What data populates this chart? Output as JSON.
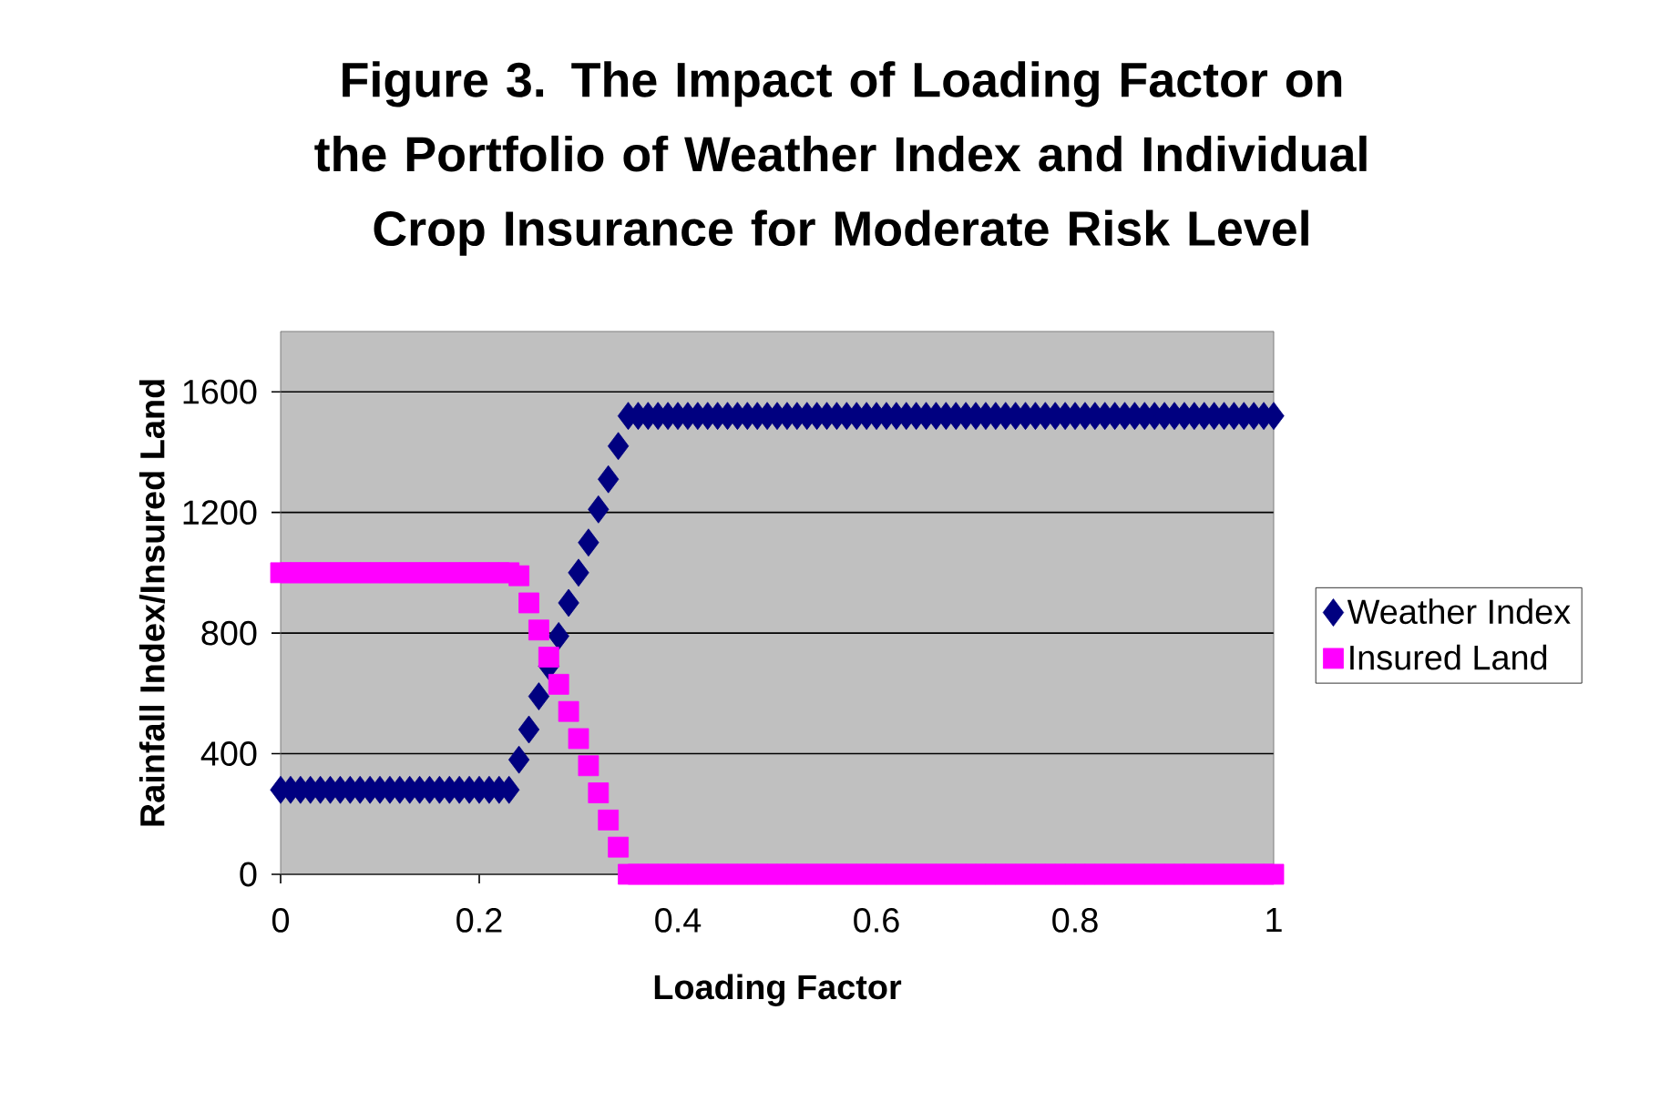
{
  "chart_data": {
    "type": "scatter",
    "title": "Figure 3. The Impact of Loading Factor on the Portfolio of Weather Index and Individual Crop Insurance for Moderate Risk Level",
    "xlabel": "Loading Factor",
    "ylabel": "Rainfall Index/Insured Land",
    "x": [
      0,
      0.01,
      0.02,
      0.03,
      0.04,
      0.05,
      0.06,
      0.07,
      0.08,
      0.09,
      0.1,
      0.11,
      0.12,
      0.13,
      0.14,
      0.15,
      0.16,
      0.17,
      0.18,
      0.19,
      0.2,
      0.21,
      0.22,
      0.23,
      0.24,
      0.25,
      0.26,
      0.27,
      0.28,
      0.29,
      0.3,
      0.31,
      0.32,
      0.33,
      0.34,
      0.35,
      0.36,
      0.37,
      0.38,
      0.39,
      0.4,
      0.41,
      0.42,
      0.43,
      0.44,
      0.45,
      0.46,
      0.47,
      0.48,
      0.49,
      0.5,
      0.51,
      0.52,
      0.53,
      0.54,
      0.55,
      0.56,
      0.57,
      0.58,
      0.59,
      0.6,
      0.61,
      0.62,
      0.63,
      0.64,
      0.65,
      0.66,
      0.67,
      0.68,
      0.69,
      0.7,
      0.71,
      0.72,
      0.73,
      0.74,
      0.75,
      0.76,
      0.77,
      0.78,
      0.79,
      0.8,
      0.81,
      0.82,
      0.83,
      0.84,
      0.85,
      0.86,
      0.87,
      0.88,
      0.89,
      0.9,
      0.91,
      0.92,
      0.93,
      0.94,
      0.95,
      0.96,
      0.97,
      0.98,
      0.99,
      1
    ],
    "series": [
      {
        "name": "Weather Index",
        "color": "#000080",
        "marker": "diamond",
        "values": [
          280,
          280,
          280,
          280,
          280,
          280,
          280,
          280,
          280,
          280,
          280,
          280,
          280,
          280,
          280,
          280,
          280,
          280,
          280,
          280,
          280,
          280,
          280,
          280,
          380,
          480,
          590,
          690,
          790,
          900,
          1000,
          1100,
          1210,
          1310,
          1420,
          1520,
          1520,
          1520,
          1520,
          1520,
          1520,
          1520,
          1520,
          1520,
          1520,
          1520,
          1520,
          1520,
          1520,
          1520,
          1520,
          1520,
          1520,
          1520,
          1520,
          1520,
          1520,
          1520,
          1520,
          1520,
          1520,
          1520,
          1520,
          1520,
          1520,
          1520,
          1520,
          1520,
          1520,
          1520,
          1520,
          1520,
          1520,
          1520,
          1520,
          1520,
          1520,
          1520,
          1520,
          1520,
          1520,
          1520,
          1520,
          1520,
          1520,
          1520,
          1520,
          1520,
          1520,
          1520,
          1520,
          1520,
          1520,
          1520,
          1520,
          1520,
          1520,
          1520,
          1520,
          1520,
          1520
        ]
      },
      {
        "name": "Insured Land",
        "color": "#ff00ff",
        "marker": "square",
        "values": [
          1000,
          1000,
          1000,
          1000,
          1000,
          1000,
          1000,
          1000,
          1000,
          1000,
          1000,
          1000,
          1000,
          1000,
          1000,
          1000,
          1000,
          1000,
          1000,
          1000,
          1000,
          1000,
          1000,
          1000,
          990,
          900,
          810,
          720,
          630,
          540,
          450,
          360,
          270,
          180,
          90,
          0,
          0,
          0,
          0,
          0,
          0,
          0,
          0,
          0,
          0,
          0,
          0,
          0,
          0,
          0,
          0,
          0,
          0,
          0,
          0,
          0,
          0,
          0,
          0,
          0,
          0,
          0,
          0,
          0,
          0,
          0,
          0,
          0,
          0,
          0,
          0,
          0,
          0,
          0,
          0,
          0,
          0,
          0,
          0,
          0,
          0,
          0,
          0,
          0,
          0,
          0,
          0,
          0,
          0,
          0,
          0,
          0,
          0,
          0,
          0,
          0,
          0,
          0,
          0,
          0,
          0
        ]
      }
    ],
    "xlim": [
      0,
      1
    ],
    "ylim": [
      0,
      1800
    ],
    "xticks": [
      0,
      0.2,
      0.4,
      0.6,
      0.8,
      1
    ],
    "yticks": [
      0,
      400,
      800,
      1200,
      1600
    ],
    "grid": "y",
    "legend": "right"
  }
}
